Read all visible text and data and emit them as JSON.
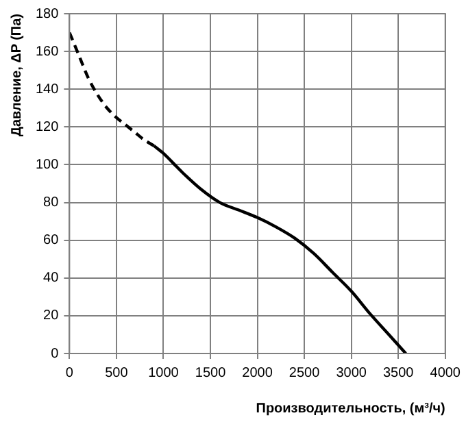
{
  "chart_data": {
    "type": "line",
    "xlabel": "Производительность, (м³/ч)",
    "ylabel": "Давление, ΔP (Па)",
    "xlim": [
      0,
      4000
    ],
    "xticks": [
      0,
      500,
      1000,
      1500,
      2000,
      2500,
      3000,
      3500,
      4000
    ],
    "ylim": [
      0,
      180
    ],
    "yticks": [
      0,
      20,
      40,
      60,
      80,
      100,
      120,
      140,
      160,
      180
    ],
    "grid": true,
    "marker": "none",
    "series": [
      {
        "color": "#000000",
        "line_style": "dashed",
        "x": [
          0,
          100,
          200,
          300,
          400,
          500,
          600,
          700,
          800,
          900
        ],
        "values": [
          170,
          158,
          146,
          137,
          130,
          125,
          121,
          117,
          113,
          110
        ]
      },
      {
        "color": "#000000",
        "line_style": "solid",
        "x": [
          900,
          1000,
          1200,
          1400,
          1600,
          1800,
          2000,
          2200,
          2400,
          2600,
          2800,
          3000,
          3200,
          3400,
          3580
        ],
        "values": [
          110,
          106,
          96,
          87,
          80,
          76,
          72,
          67,
          61,
          53,
          43,
          33,
          21,
          10,
          0
        ]
      }
    ]
  }
}
